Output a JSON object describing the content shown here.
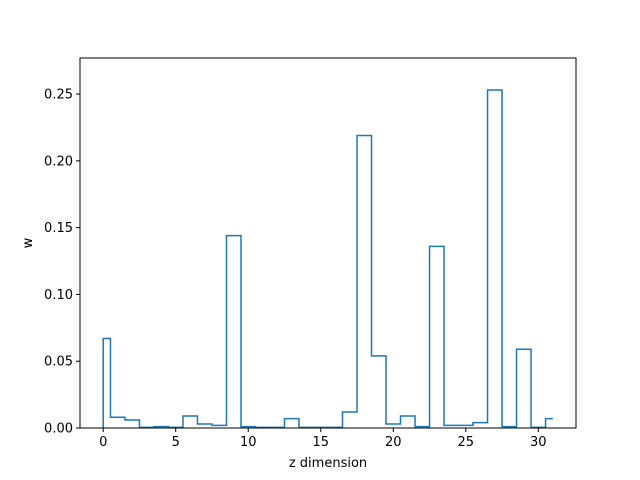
{
  "chart_data": {
    "type": "bar",
    "style": "step-outline",
    "color": "#1f77b4",
    "xlabel": "z dimension",
    "ylabel": "w",
    "xlim": [
      -1.6,
      32.6
    ],
    "ylim": [
      0,
      0.277
    ],
    "xticks": [
      0,
      5,
      10,
      15,
      20,
      25,
      30
    ],
    "xtick_labels": [
      "0",
      "5",
      "10",
      "15",
      "20",
      "25",
      "30"
    ],
    "yticks": [
      0.0,
      0.05,
      0.1,
      0.15,
      0.2,
      0.25
    ],
    "ytick_labels": [
      "0.00",
      "0.05",
      "0.10",
      "0.15",
      "0.20",
      "0.25"
    ],
    "x": [
      0,
      1,
      2,
      3,
      4,
      5,
      6,
      7,
      8,
      9,
      10,
      11,
      12,
      13,
      14,
      15,
      16,
      17,
      18,
      19,
      20,
      21,
      22,
      23,
      24,
      25,
      26,
      27,
      28,
      29,
      30,
      31
    ],
    "values": [
      0.067,
      0.008,
      0.006,
      0.0005,
      0.001,
      0.0005,
      0.009,
      0.003,
      0.002,
      0.144,
      0.001,
      0.0005,
      0.0005,
      0.007,
      0.0005,
      0.0005,
      0.0005,
      0.012,
      0.219,
      0.054,
      0.003,
      0.009,
      0.001,
      0.136,
      0.002,
      0.002,
      0.004,
      0.253,
      0.001,
      0.059,
      0.0005,
      0.007
    ]
  }
}
